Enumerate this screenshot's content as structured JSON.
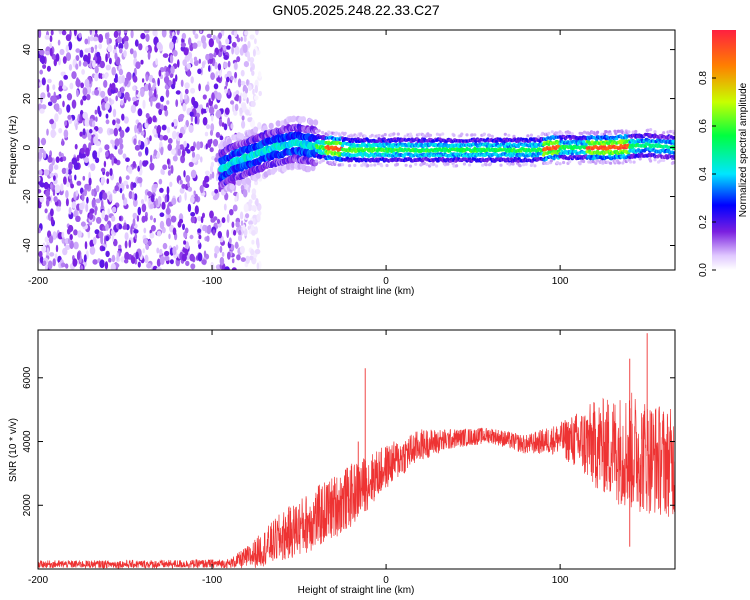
{
  "title": "GN05.2025.248.22.33.C27",
  "chart_data": [
    {
      "type": "heatmap",
      "xlabel": "Height of straight line (km)",
      "ylabel": "Frequency (Hz)",
      "xlim": [
        -200,
        166
      ],
      "ylim": [
        -50,
        48
      ],
      "xticks": [
        "-200",
        "-100",
        "0",
        "100"
      ],
      "yticks": [
        "-40",
        "-20",
        "0",
        "20",
        "40"
      ],
      "colorbar": {
        "label": "Normalized spectral amplitude",
        "range": [
          0,
          1
        ],
        "ticks": [
          "0.0",
          "0.2",
          "0.4",
          "0.6",
          "0.8"
        ],
        "colors": [
          "#ffffff",
          "#e0c8ff",
          "#7a1fe0",
          "#0000ff",
          "#00e6ff",
          "#00ff40",
          "#c8ff00",
          "#ff8000",
          "#ff2040"
        ]
      },
      "noise_region_km": [
        -200,
        -78
      ],
      "ridge_center_hz": [
        {
          "x": -95,
          "y": -9
        },
        {
          "x": -88,
          "y": -6
        },
        {
          "x": -80,
          "y": -4
        },
        {
          "x": -72,
          "y": -2
        },
        {
          "x": -65,
          "y": 0
        },
        {
          "x": -58,
          "y": 1
        },
        {
          "x": -52,
          "y": 2
        },
        {
          "x": -45,
          "y": 1
        },
        {
          "x": -35,
          "y": 0
        },
        {
          "x": -20,
          "y": -1
        },
        {
          "x": 0,
          "y": -1
        },
        {
          "x": 50,
          "y": -1
        },
        {
          "x": 88,
          "y": -1
        },
        {
          "x": 95,
          "y": 0
        },
        {
          "x": 110,
          "y": 0
        },
        {
          "x": 130,
          "y": 0
        },
        {
          "x": 150,
          "y": 1
        },
        {
          "x": 166,
          "y": 0
        }
      ]
    },
    {
      "type": "line",
      "xlabel": "Height of straight line (km)",
      "ylabel": "SNR (10 * v/v)",
      "xlim": [
        -200,
        166
      ],
      "ylim": [
        0,
        7500
      ],
      "xticks": [
        "-200",
        "-100",
        "0",
        "100"
      ],
      "yticks": [
        "2000",
        "4000",
        "6000"
      ],
      "color": "#ee3333",
      "envelope": [
        {
          "x": -200,
          "mean": 150,
          "amp": 120
        },
        {
          "x": -130,
          "mean": 150,
          "amp": 130
        },
        {
          "x": -90,
          "mean": 170,
          "amp": 140
        },
        {
          "x": -78,
          "mean": 400,
          "amp": 400
        },
        {
          "x": -60,
          "mean": 1000,
          "amp": 800
        },
        {
          "x": -40,
          "mean": 1600,
          "amp": 1000
        },
        {
          "x": -20,
          "mean": 2300,
          "amp": 1000
        },
        {
          "x": 0,
          "mean": 3200,
          "amp": 700
        },
        {
          "x": 20,
          "mean": 3900,
          "amp": 500
        },
        {
          "x": 40,
          "mean": 4100,
          "amp": 300
        },
        {
          "x": 60,
          "mean": 4200,
          "amp": 250
        },
        {
          "x": 80,
          "mean": 3900,
          "amp": 300
        },
        {
          "x": 100,
          "mean": 4100,
          "amp": 500
        },
        {
          "x": 120,
          "mean": 3900,
          "amp": 1400
        },
        {
          "x": 140,
          "mean": 3700,
          "amp": 1900
        },
        {
          "x": 166,
          "mean": 3300,
          "amp": 1700
        }
      ],
      "spikes": [
        {
          "x": -12,
          "y": 6300
        },
        {
          "x": -16,
          "y": 4000
        },
        {
          "x": 140,
          "y": 6600
        },
        {
          "x": 150,
          "y": 7400
        },
        {
          "x": 140,
          "y": 700
        }
      ]
    }
  ]
}
